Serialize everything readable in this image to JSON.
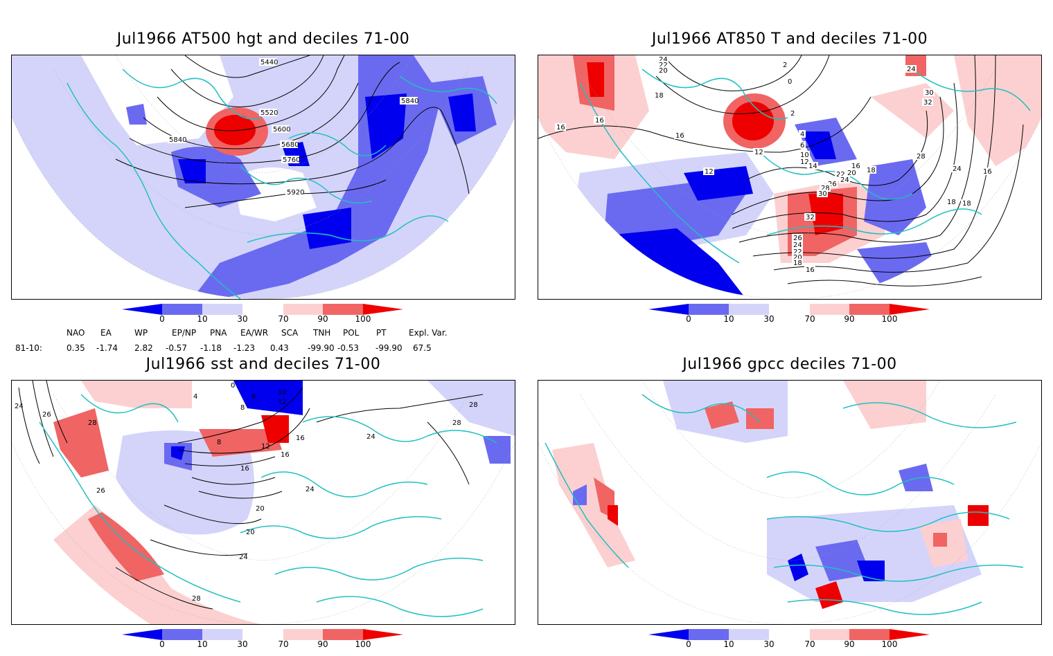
{
  "panels": [
    {
      "id": "tl",
      "title": "Jul1966 AT500 hgt and deciles 71-00",
      "contour_labels": [
        "5440",
        "5520",
        "5600",
        "5680",
        "5760",
        "5840",
        "5840",
        "5920"
      ]
    },
    {
      "id": "tr",
      "title": "Jul1966 AT850 T and deciles 71-00",
      "contour_labels": [
        "24",
        "22",
        "20",
        "2",
        "0",
        "18",
        "16",
        "16",
        "16",
        "12",
        "12",
        "2",
        "4",
        "6",
        "10",
        "12",
        "14",
        "16",
        "18",
        "20",
        "22",
        "24",
        "26",
        "28",
        "30",
        "32",
        "26",
        "24",
        "22",
        "20",
        "18",
        "16",
        "18",
        "24",
        "28",
        "30",
        "32",
        "24",
        "16",
        "18"
      ]
    },
    {
      "id": "bl",
      "title": "Jul1966 sst and deciles 71-00",
      "contour_labels": [
        "24",
        "26",
        "28",
        "0",
        "4",
        "6",
        "8",
        "10",
        "12",
        "8",
        "12",
        "16",
        "16",
        "16",
        "20",
        "20",
        "24",
        "24",
        "28",
        "26",
        "28",
        "28",
        "24"
      ]
    },
    {
      "id": "br",
      "title": "Jul1966 gpcc deciles 71-00",
      "contour_labels": []
    }
  ],
  "colorbar": {
    "labels": [
      "0",
      "10",
      "30",
      "70",
      "90",
      "100"
    ],
    "colors": [
      "#0000ee",
      "#6a6af0",
      "#d4d4fa",
      "#ffffff",
      "#fcd0d0",
      "#f06464",
      "#ee0000"
    ]
  },
  "indices": {
    "row_label": "81-10:",
    "headers": [
      "NAO",
      "EA",
      "WP",
      "EP/NP",
      "PNA",
      "EA/WR",
      "SCA",
      "TNH",
      "POL",
      "PT",
      "Expl. Var."
    ],
    "values": [
      "0.35",
      "-1.74",
      "2.82",
      "-0.57",
      "-1.18",
      "-1.23",
      "0.43",
      "-99.90",
      "-0.53",
      "-99.90",
      "67.5"
    ]
  },
  "colors": {
    "coastline": "#20c0c0",
    "frame": "#000000",
    "grid": "#999999"
  }
}
